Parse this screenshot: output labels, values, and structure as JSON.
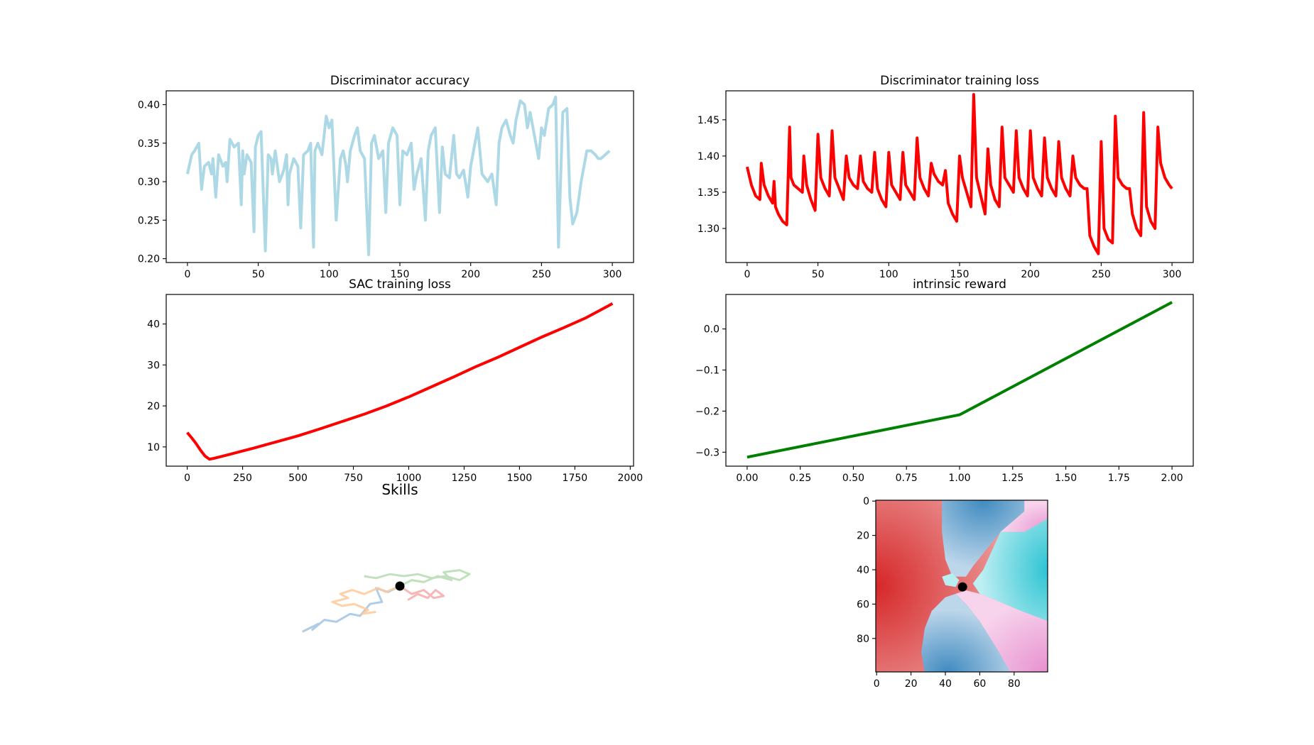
{
  "chart_data": [
    {
      "id": "disc_acc",
      "type": "line",
      "title": "Discriminator accuracy",
      "xlim": [
        -15,
        315
      ],
      "ylim": [
        0.195,
        0.418
      ],
      "xticks": [
        0,
        50,
        100,
        150,
        200,
        250,
        300
      ],
      "xtick_labels": [
        "0",
        "50",
        "100",
        "150",
        "200",
        "250",
        "300"
      ],
      "yticks": [
        0.2,
        0.25,
        0.3,
        0.35,
        0.4
      ],
      "ytick_labels": [
        "0.20",
        "0.25",
        "0.30",
        "0.35",
        "0.40"
      ],
      "color": "#add8e6",
      "series": [
        {
          "x": [
            0,
            3,
            5,
            8,
            10,
            12,
            15,
            17,
            18,
            20,
            22,
            25,
            27,
            28,
            30,
            33,
            36,
            38,
            39,
            40,
            42,
            45,
            47,
            48,
            50,
            52,
            55,
            57,
            59,
            60,
            62,
            65,
            68,
            70,
            71,
            72,
            75,
            78,
            80,
            82,
            85,
            87,
            89,
            90,
            92,
            95,
            98,
            100,
            102,
            105,
            108,
            110,
            112,
            113,
            115,
            118,
            120,
            122,
            125,
            128,
            130,
            132,
            135,
            138,
            140,
            142,
            145,
            148,
            150,
            152,
            155,
            158,
            160,
            162,
            165,
            168,
            170,
            172,
            175,
            178,
            180,
            182,
            185,
            188,
            190,
            192,
            195,
            198,
            200,
            202,
            205,
            208,
            210,
            212,
            215,
            218,
            220,
            222,
            225,
            228,
            230,
            232,
            235,
            238,
            240,
            242,
            245,
            248,
            250,
            252,
            255,
            258,
            260,
            262,
            265,
            268,
            270,
            272,
            275,
            278,
            280,
            282,
            285,
            288,
            290,
            292,
            295,
            298
          ],
          "y": [
            0.31,
            0.335,
            0.34,
            0.35,
            0.29,
            0.32,
            0.325,
            0.31,
            0.33,
            0.28,
            0.335,
            0.32,
            0.325,
            0.3,
            0.355,
            0.345,
            0.35,
            0.27,
            0.34,
            0.31,
            0.335,
            0.325,
            0.235,
            0.345,
            0.36,
            0.365,
            0.21,
            0.335,
            0.33,
            0.31,
            0.34,
            0.3,
            0.315,
            0.335,
            0.27,
            0.31,
            0.33,
            0.32,
            0.24,
            0.335,
            0.34,
            0.35,
            0.215,
            0.34,
            0.35,
            0.335,
            0.385,
            0.37,
            0.38,
            0.25,
            0.33,
            0.34,
            0.32,
            0.3,
            0.34,
            0.36,
            0.37,
            0.34,
            0.33,
            0.205,
            0.35,
            0.36,
            0.33,
            0.34,
            0.26,
            0.35,
            0.37,
            0.36,
            0.27,
            0.34,
            0.335,
            0.35,
            0.29,
            0.31,
            0.33,
            0.25,
            0.34,
            0.36,
            0.37,
            0.26,
            0.345,
            0.31,
            0.305,
            0.36,
            0.31,
            0.305,
            0.315,
            0.28,
            0.32,
            0.34,
            0.37,
            0.31,
            0.305,
            0.3,
            0.31,
            0.27,
            0.35,
            0.37,
            0.38,
            0.36,
            0.35,
            0.38,
            0.405,
            0.4,
            0.37,
            0.39,
            0.36,
            0.33,
            0.37,
            0.36,
            0.395,
            0.4,
            0.41,
            0.215,
            0.39,
            0.395,
            0.28,
            0.245,
            0.26,
            0.3,
            0.32,
            0.34,
            0.34,
            0.335,
            0.33,
            0.33,
            0.335,
            0.34
          ]
        }
      ]
    },
    {
      "id": "disc_loss",
      "type": "line",
      "title": "Discriminator training loss",
      "xlim": [
        -15,
        315
      ],
      "ylim": [
        1.253,
        1.49
      ],
      "xticks": [
        0,
        50,
        100,
        150,
        200,
        250,
        300
      ],
      "xtick_labels": [
        "0",
        "50",
        "100",
        "150",
        "200",
        "250",
        "300"
      ],
      "yticks": [
        1.3,
        1.35,
        1.4,
        1.45
      ],
      "ytick_labels": [
        "1.30",
        "1.35",
        "1.40",
        "1.45"
      ],
      "color": "#ff0000",
      "series": [
        {
          "x": [
            0,
            3,
            6,
            9,
            10,
            12,
            15,
            18,
            19,
            20,
            22,
            25,
            28,
            30,
            31,
            33,
            36,
            39,
            40,
            42,
            45,
            48,
            50,
            52,
            55,
            58,
            60,
            62,
            65,
            68,
            70,
            72,
            75,
            78,
            80,
            82,
            85,
            88,
            90,
            92,
            95,
            98,
            100,
            102,
            105,
            108,
            110,
            112,
            115,
            118,
            120,
            122,
            125,
            128,
            130,
            132,
            135,
            138,
            140,
            142,
            145,
            148,
            150,
            152,
            155,
            158,
            160,
            162,
            165,
            168,
            170,
            172,
            175,
            178,
            180,
            182,
            185,
            188,
            190,
            192,
            195,
            198,
            200,
            202,
            205,
            208,
            210,
            212,
            215,
            218,
            220,
            222,
            225,
            228,
            230,
            232,
            235,
            238,
            240,
            242,
            245,
            248,
            250,
            252,
            255,
            258,
            260,
            262,
            265,
            268,
            270,
            272,
            275,
            278,
            280,
            282,
            285,
            288,
            290,
            292,
            295,
            298,
            300
          ],
          "y": [
            1.385,
            1.36,
            1.345,
            1.34,
            1.39,
            1.36,
            1.345,
            1.335,
            1.365,
            1.33,
            1.32,
            1.31,
            1.305,
            1.44,
            1.37,
            1.36,
            1.355,
            1.35,
            1.4,
            1.36,
            1.34,
            1.325,
            1.43,
            1.37,
            1.355,
            1.345,
            1.435,
            1.37,
            1.355,
            1.34,
            1.4,
            1.37,
            1.36,
            1.355,
            1.4,
            1.365,
            1.355,
            1.35,
            1.405,
            1.355,
            1.34,
            1.33,
            1.405,
            1.36,
            1.35,
            1.34,
            1.405,
            1.36,
            1.35,
            1.34,
            1.425,
            1.37,
            1.355,
            1.345,
            1.39,
            1.375,
            1.365,
            1.36,
            1.38,
            1.335,
            1.32,
            1.31,
            1.4,
            1.37,
            1.35,
            1.33,
            1.485,
            1.37,
            1.345,
            1.32,
            1.41,
            1.36,
            1.34,
            1.33,
            1.44,
            1.37,
            1.36,
            1.35,
            1.435,
            1.37,
            1.355,
            1.345,
            1.435,
            1.37,
            1.355,
            1.345,
            1.425,
            1.37,
            1.355,
            1.345,
            1.42,
            1.37,
            1.355,
            1.345,
            1.4,
            1.37,
            1.36,
            1.355,
            1.355,
            1.29,
            1.275,
            1.265,
            1.42,
            1.3,
            1.285,
            1.28,
            1.455,
            1.37,
            1.36,
            1.355,
            1.355,
            1.32,
            1.3,
            1.29,
            1.46,
            1.33,
            1.31,
            1.3,
            1.44,
            1.39,
            1.37,
            1.36,
            1.355
          ]
        }
      ]
    },
    {
      "id": "sac_loss",
      "type": "line",
      "title": "SAC training loss",
      "xlim": [
        -95,
        2015
      ],
      "ylim": [
        5.3,
        47.2
      ],
      "xticks": [
        0,
        250,
        500,
        750,
        1000,
        1250,
        1500,
        1750,
        2000
      ],
      "xtick_labels": [
        "0",
        "250",
        "500",
        "750",
        "1000",
        "1250",
        "1500",
        "1750",
        "2000"
      ],
      "yticks": [
        10,
        20,
        30,
        40
      ],
      "ytick_labels": [
        "10",
        "20",
        "30",
        "40"
      ],
      "color": "#ff0000",
      "series": [
        {
          "x": [
            0,
            20,
            40,
            60,
            80,
            100,
            120,
            150,
            200,
            250,
            300,
            400,
            500,
            600,
            700,
            800,
            900,
            1000,
            1100,
            1200,
            1300,
            1400,
            1500,
            1600,
            1700,
            1800,
            1900,
            1920
          ],
          "y": [
            13.5,
            12.2,
            10.8,
            9.2,
            7.8,
            7.0,
            7.2,
            7.6,
            8.3,
            9.0,
            9.7,
            11.2,
            12.7,
            14.4,
            16.2,
            18.0,
            20.0,
            22.2,
            24.6,
            27.0,
            29.5,
            31.8,
            34.3,
            36.8,
            39.1,
            41.5,
            44.4,
            45.0
          ]
        }
      ]
    },
    {
      "id": "intrinsic_reward",
      "type": "line",
      "title": "intrinsic reward",
      "xlim": [
        -0.1,
        2.1
      ],
      "ylim": [
        -0.334,
        0.084
      ],
      "xticks": [
        0.0,
        0.25,
        0.5,
        0.75,
        1.0,
        1.25,
        1.5,
        1.75,
        2.0
      ],
      "xtick_labels": [
        "0.00",
        "0.25",
        "0.50",
        "0.75",
        "1.00",
        "1.25",
        "1.50",
        "1.75",
        "2.00"
      ],
      "yticks": [
        -0.3,
        -0.2,
        -0.1,
        0.0
      ],
      "ytick_labels": [
        "−0.3",
        "−0.2",
        "−0.1",
        "0.0"
      ],
      "color": "#008000",
      "series": [
        {
          "x": [
            0,
            1,
            2
          ],
          "y": [
            -0.312,
            -0.209,
            0.065
          ]
        }
      ]
    },
    {
      "id": "skills",
      "type": "line",
      "title": "Skills",
      "series": [
        {
          "color": "#a1c4e2",
          "x": [
            0,
            -0.6,
            -1.2,
            -0.9,
            -1.5,
            -2.0,
            -2.5,
            -3.2,
            -3.8,
            -4.4,
            -4.1,
            -4.9
          ],
          "y": [
            0,
            -0.3,
            -0.1,
            -0.8,
            -0.9,
            -1.5,
            -1.4,
            -1.8,
            -1.7,
            -2.2,
            -1.9,
            -2.3
          ]
        },
        {
          "color": "#ffc99a",
          "x": [
            0,
            -0.7,
            -1.1,
            -1.8,
            -2.4,
            -3.0,
            -2.6,
            -3.4,
            -2.9,
            -2.3,
            -1.6,
            -1.9,
            -1.2
          ],
          "y": [
            0,
            -0.3,
            -0.1,
            -0.4,
            -0.2,
            -0.4,
            -0.6,
            -0.8,
            -1.0,
            -0.9,
            -1.2,
            -1.4,
            -1.3
          ]
        },
        {
          "color": "#b6dcb1",
          "x": [
            0,
            0.6,
            1.2,
            1.9,
            2.6,
            2.2,
            3.0,
            3.5,
            3.0,
            2.3,
            1.6,
            0.9,
            0.2,
            -0.5,
            -1.2,
            -1.8
          ],
          "y": [
            0,
            0.3,
            0.2,
            0.5,
            0.3,
            0.7,
            0.8,
            0.6,
            0.3,
            0.5,
            0.4,
            0.6,
            0.5,
            0.6,
            0.4,
            0.5
          ]
        },
        {
          "color": "#f4aaaa",
          "x": [
            0,
            0.6,
            1.2,
            1.7,
            2.2,
            1.8,
            1.4,
            0.9,
            0.4
          ],
          "y": [
            0,
            -0.4,
            -0.2,
            -0.6,
            -0.5,
            -0.2,
            -0.6,
            -0.4,
            -0.7
          ]
        }
      ],
      "marker": {
        "x": 0,
        "y": 0,
        "color": "#000000"
      }
    },
    {
      "id": "skill_map",
      "type": "heatmap",
      "title": "",
      "xlim": [
        0,
        99
      ],
      "ylim": [
        99,
        0
      ],
      "xticks": [
        0,
        20,
        40,
        60,
        80
      ],
      "xtick_labels": [
        "0",
        "20",
        "40",
        "60",
        "80"
      ],
      "yticks": [
        0,
        20,
        40,
        60,
        80
      ],
      "ytick_labels": [
        "0",
        "20",
        "40",
        "60",
        "80"
      ],
      "colors": {
        "red": "#d62728",
        "blue": "#1f77b4",
        "pink": "#e377c2",
        "cyan": "#17becf"
      },
      "marker": {
        "x": 50,
        "y": 50,
        "color": "#000000"
      }
    }
  ]
}
